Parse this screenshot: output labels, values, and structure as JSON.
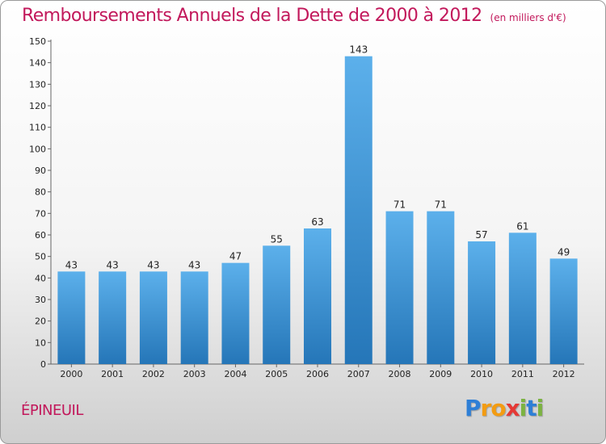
{
  "title": "Remboursements Annuels de la Dette de 2000 à 2012",
  "unit": "(en milliers d'€)",
  "place": "ÉPINEUIL",
  "brand": {
    "letters": [
      "P",
      "r",
      "o",
      "x",
      "i",
      "t",
      "i"
    ],
    "colors": [
      "#2e7fd6",
      "#f39c12",
      "#f39c12",
      "#e53935",
      "#7cb342",
      "#2e7fd6",
      "#7cb342"
    ]
  },
  "colors": {
    "title": "#c2185b",
    "bar_light": "#5cb0eb",
    "bar_dark": "#2576b8"
  },
  "chart_data": {
    "type": "bar",
    "categories": [
      "2000",
      "2001",
      "2002",
      "2003",
      "2004",
      "2005",
      "2006",
      "2007",
      "2008",
      "2009",
      "2010",
      "2011",
      "2012"
    ],
    "values": [
      43,
      43,
      43,
      43,
      47,
      55,
      63,
      143,
      71,
      71,
      57,
      61,
      49
    ],
    "ylim": [
      0,
      150
    ],
    "yticks": [
      0,
      10,
      20,
      30,
      40,
      50,
      60,
      70,
      80,
      90,
      100,
      110,
      120,
      130,
      140,
      150
    ],
    "grid": false,
    "legend": "none"
  }
}
